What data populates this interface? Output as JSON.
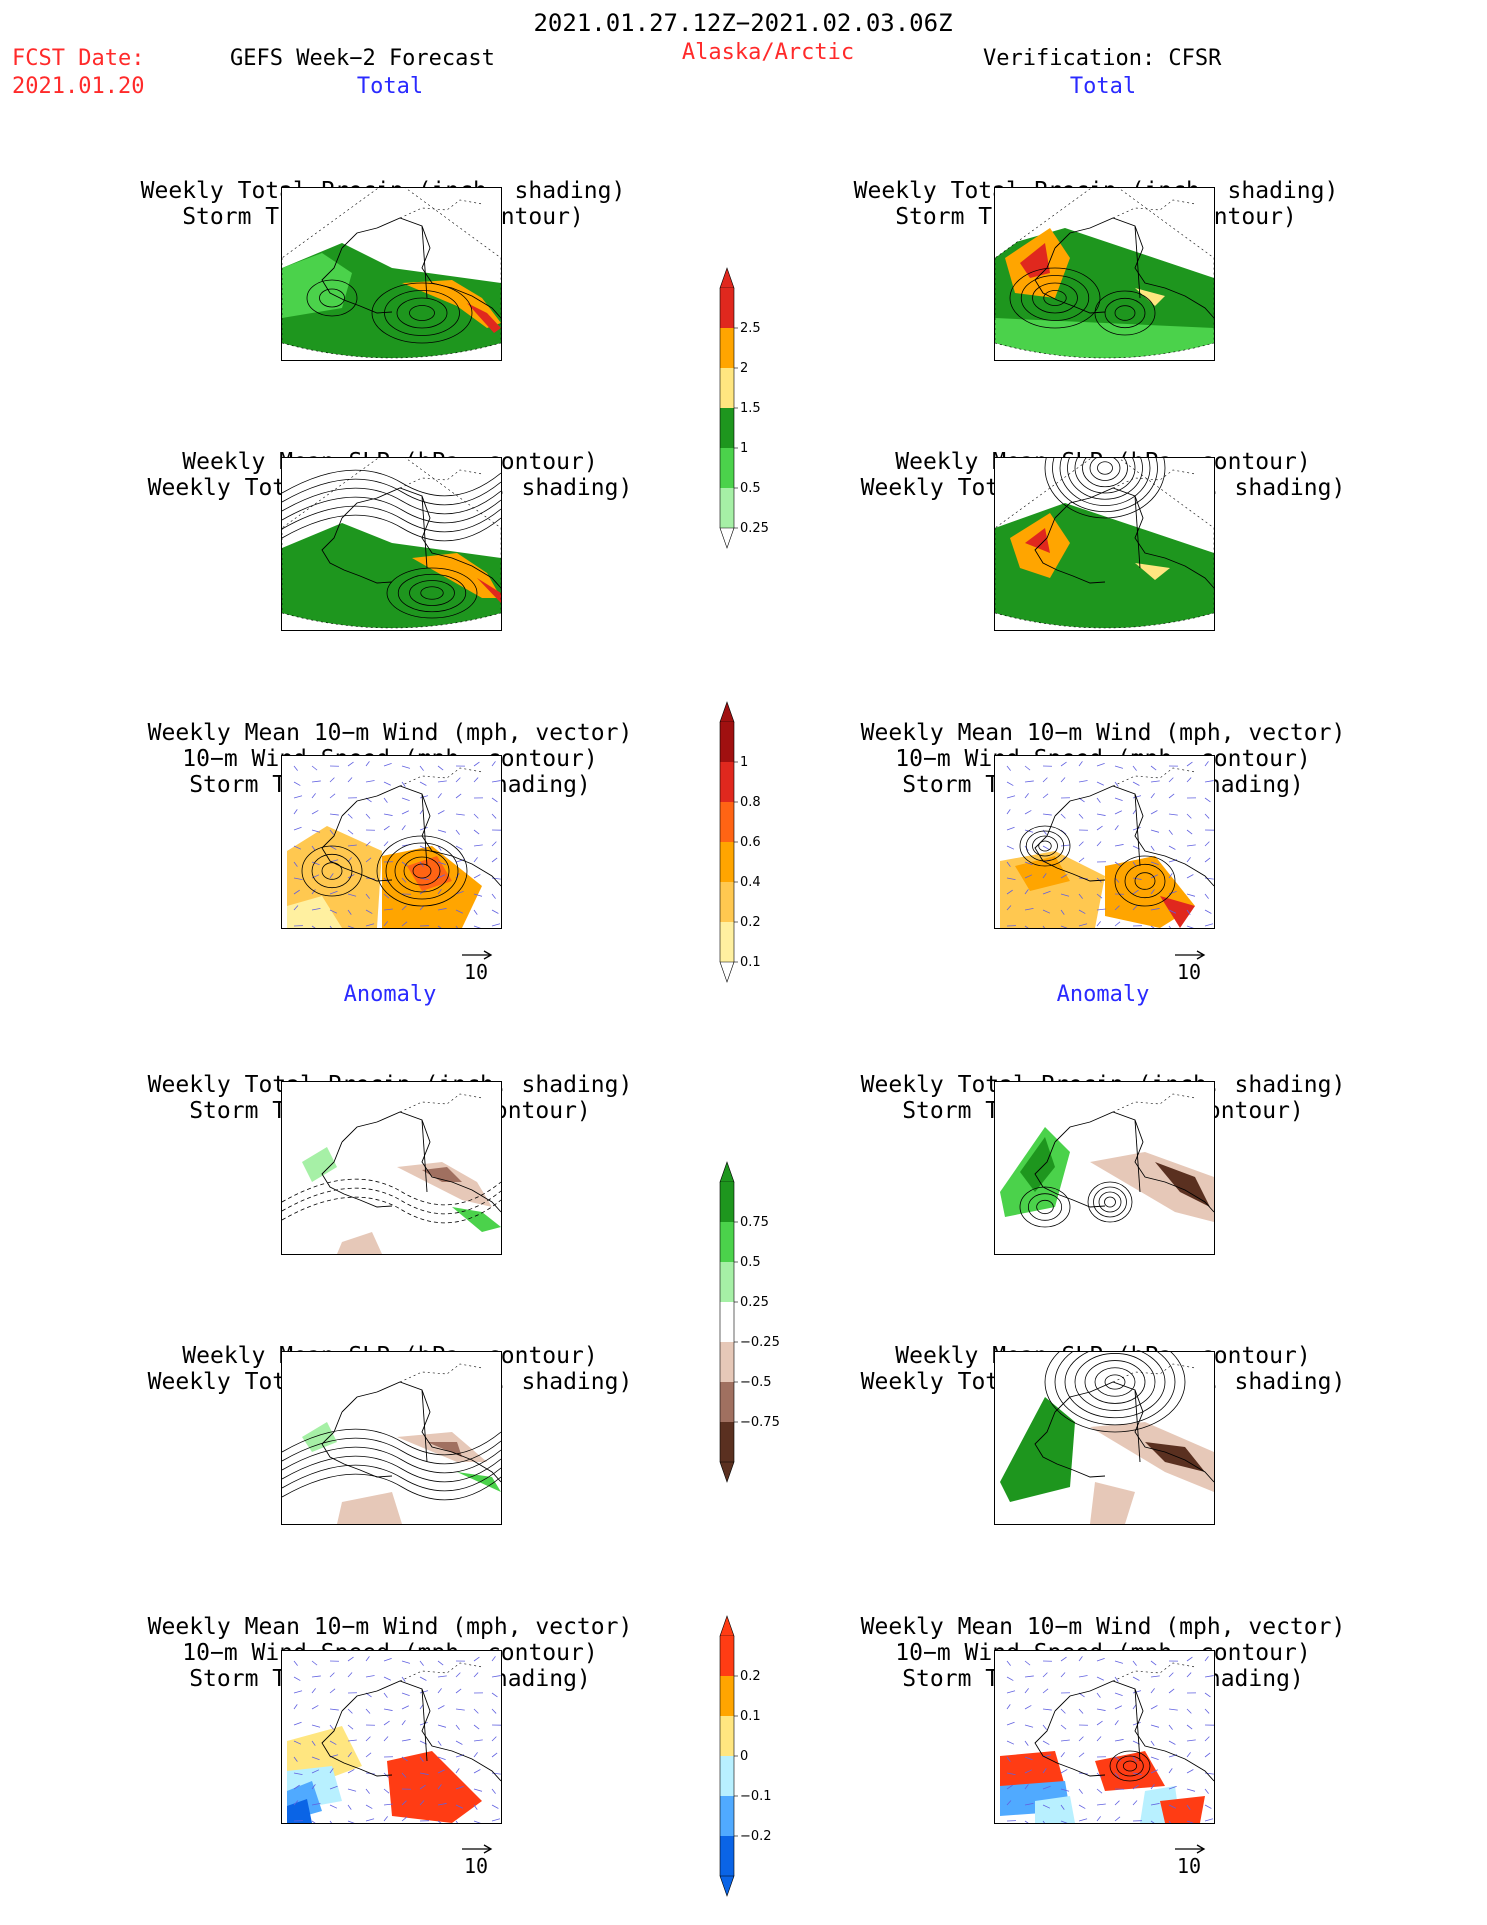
{
  "header": {
    "date_range": "2021.01.27.12Z−2021.02.03.06Z",
    "fcst_label": "FCST Date:",
    "fcst_date": "2021.01.20",
    "forecast_title": "GEFS Week−2 Forecast",
    "region": "Alaska/Arctic",
    "verification": "Verification: CFSR"
  },
  "sections": {
    "total": "Total",
    "anomaly": "Anomaly"
  },
  "titles": {
    "precip_track": [
      "Weekly Total Precip (inch, shading)",
      "Storm Track Density (contour)"
    ],
    "slp_precip": [
      "Weekly Mean SLP (hPa, contour)",
      "Weekly Total Precip (inch, shading)"
    ],
    "wind": [
      "Weekly Mean 10−m Wind (mph, vector)",
      "10−m Wind Speed (mph, contour)",
      "Storm Track Density (shading)"
    ]
  },
  "vector_ref": "10",
  "colorbars": {
    "precip_total": {
      "labels": [
        "2.5",
        "2",
        "1.5",
        "1",
        "0.5",
        "0.25"
      ],
      "colors": [
        "#e0281e",
        "#ffa500",
        "#ffe680",
        "#1e961e",
        "#4bd24b",
        "#a6f0a6"
      ]
    },
    "track_total": {
      "labels": [
        "1",
        "0.8",
        "0.6",
        "0.4",
        "0.2",
        "0.1"
      ],
      "colors": [
        "#a01010",
        "#e0281e",
        "#ff6414",
        "#ffa500",
        "#ffc850",
        "#fff0a0"
      ]
    },
    "precip_anom": {
      "labels": [
        "0.75",
        "0.5",
        "0.25",
        "−0.25",
        "−0.5",
        "−0.75"
      ],
      "colors": [
        "#1e961e",
        "#4bd24b",
        "#a6f0a6",
        "#ffffff",
        "#e6c8b8",
        "#a07060",
        "#5a3020"
      ]
    },
    "track_anom": {
      "labels": [
        "0.2",
        "0.1",
        "0",
        "−0.1",
        "−0.2"
      ],
      "colors": [
        "#ff3c14",
        "#ffa500",
        "#ffe680",
        "#b8f0ff",
        "#50aaff",
        "#0a64e6"
      ]
    }
  },
  "colors": {
    "header_red": "#ff2a2a",
    "section_blue": "#2a2aff"
  }
}
